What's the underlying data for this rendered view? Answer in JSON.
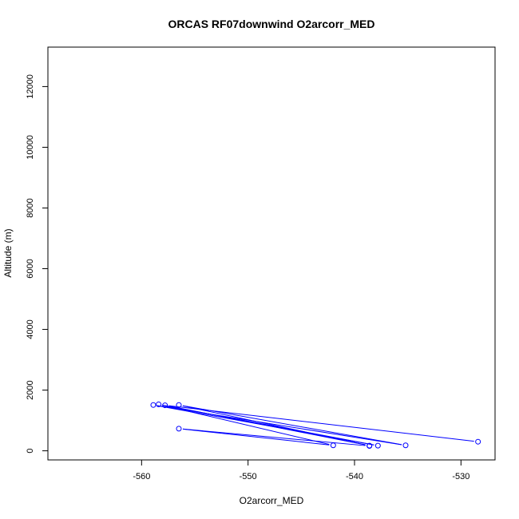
{
  "chart_data": {
    "type": "line",
    "title": "ORCAS RF07downwind O2arcorr_MED",
    "xlabel": "O2arcorr_MED",
    "ylabel": "Altitude (m)",
    "xlim": [
      -568.8,
      -526.8
    ],
    "ylim": [
      -300,
      13300
    ],
    "x_ticks": [
      -560,
      -550,
      -540,
      -530
    ],
    "y_ticks": [
      0,
      2000,
      4000,
      6000,
      8000,
      10000,
      12000
    ],
    "grid": false,
    "legend": "none",
    "series_color": "#0000ff",
    "series": [
      {
        "points": [
          {
            "x": -528.4,
            "y": 300
          },
          {
            "x": -557.8,
            "y": 1500
          },
          {
            "x": -538.6,
            "y": 170
          },
          {
            "x": -556.5,
            "y": 1510
          },
          {
            "x": -535.2,
            "y": 180
          },
          {
            "x": -558.9,
            "y": 1510
          },
          {
            "x": -537.8,
            "y": 170
          },
          {
            "x": -558.4,
            "y": 1530
          },
          {
            "x": -542.0,
            "y": 180
          },
          {
            "x": -556.5,
            "y": 730
          },
          {
            "x": -538.6,
            "y": 160
          }
        ]
      }
    ]
  }
}
